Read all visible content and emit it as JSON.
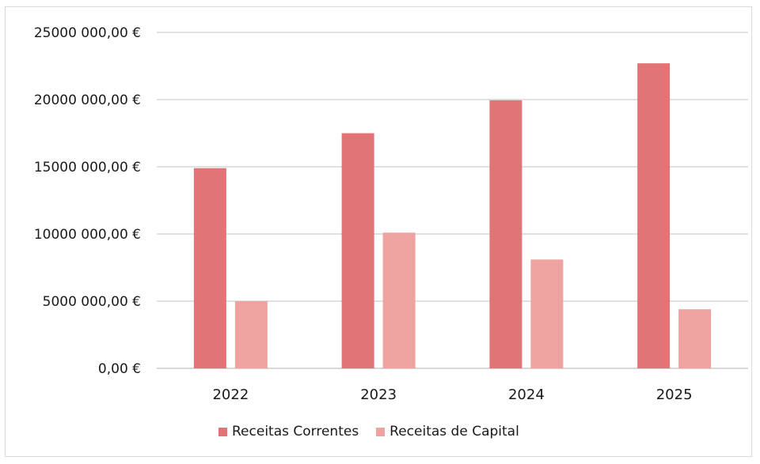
{
  "chart_data": {
    "type": "bar",
    "categories": [
      "2022",
      "2023",
      "2024",
      "2025"
    ],
    "series": [
      {
        "name": "Receitas Correntes",
        "values": [
          14900000,
          17500000,
          19950000,
          22700000
        ],
        "color": "#e07476"
      },
      {
        "name": "Receitas de Capital",
        "values": [
          5000000,
          10100000,
          8100000,
          4400000
        ],
        "color": "#eea3a1"
      }
    ],
    "ylim": [
      0,
      25000000
    ],
    "yticks": [
      "0,00 €",
      "5000 000,00 €",
      "10000 000,00 €",
      "15000 000,00 €",
      "20000 000,00 €",
      "25000 000,00 €"
    ],
    "ytick_values": [
      0,
      5000000,
      10000000,
      15000000,
      20000000,
      25000000
    ],
    "grid": true,
    "legend_position": "bottom",
    "title": "",
    "xlabel": "",
    "ylabel": ""
  }
}
